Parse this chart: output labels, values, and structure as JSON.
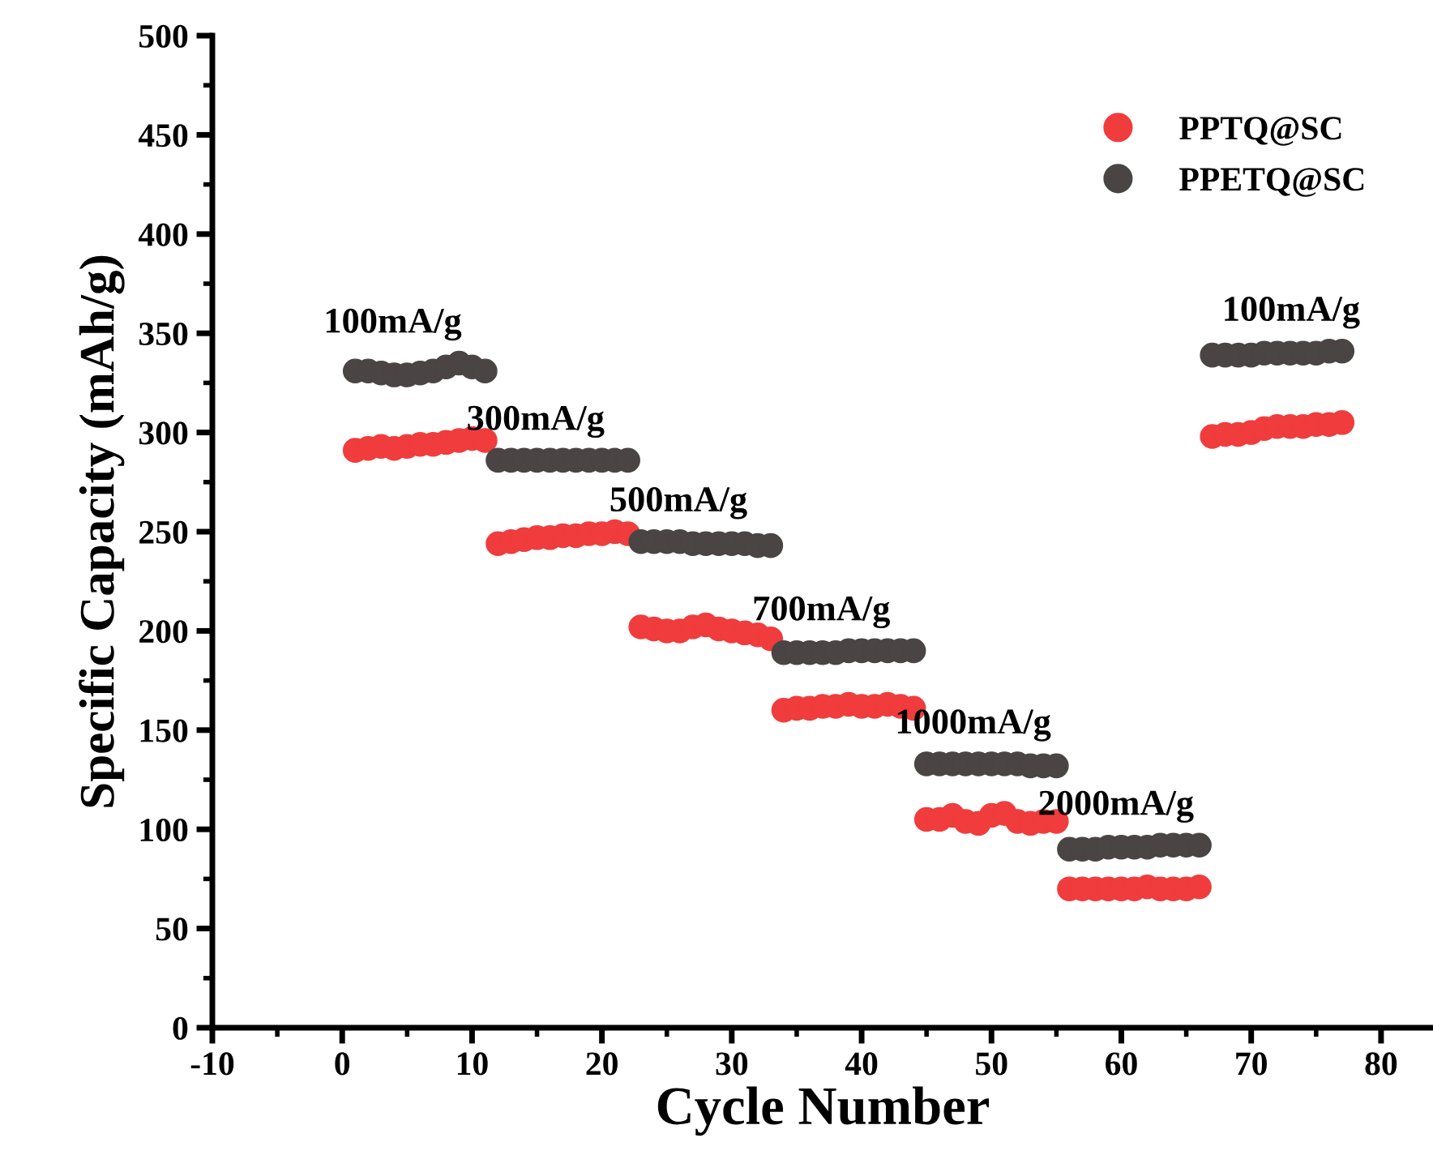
{
  "chart_data": {
    "type": "scatter",
    "xlabel": "Cycle Number",
    "ylabel": "Specific Capacity (mAh/g)",
    "x": [
      1,
      2,
      3,
      4,
      5,
      6,
      7,
      8,
      9,
      10,
      11,
      12,
      13,
      14,
      15,
      16,
      17,
      18,
      19,
      20,
      21,
      22,
      23,
      24,
      25,
      26,
      27,
      28,
      29,
      30,
      31,
      32,
      33,
      34,
      35,
      36,
      37,
      38,
      39,
      40,
      41,
      42,
      43,
      44,
      45,
      46,
      47,
      48,
      49,
      50,
      51,
      52,
      53,
      54,
      55,
      56,
      57,
      58,
      59,
      60,
      61,
      62,
      63,
      64,
      65,
      66,
      67,
      68,
      69,
      70,
      71,
      72,
      73,
      74,
      75,
      76,
      77
    ],
    "series": [
      {
        "name": "PPTQ@SC",
        "color": "#f03c3c",
        "values": [
          291,
          292,
          293,
          292,
          293,
          294,
          294,
          295,
          296,
          297,
          296,
          244,
          245,
          246,
          247,
          247,
          248,
          248,
          249,
          249,
          250,
          249,
          202,
          201,
          200,
          200,
          202,
          203,
          201,
          200,
          199,
          198,
          196,
          160,
          161,
          161,
          162,
          162,
          163,
          162,
          162,
          163,
          162,
          161,
          105,
          105,
          107,
          104,
          103,
          107,
          108,
          104,
          103,
          104,
          104,
          70,
          70,
          70,
          70,
          70,
          70,
          71,
          70,
          70,
          70,
          71,
          298,
          299,
          299,
          300,
          302,
          303,
          303,
          303,
          304,
          304,
          305
        ]
      },
      {
        "name": "PPETQ@SC",
        "color": "#4a4444",
        "values": [
          331,
          331,
          330,
          329,
          329,
          330,
          331,
          333,
          335,
          333,
          331,
          286,
          286,
          286,
          286,
          286,
          286,
          286,
          286,
          286,
          286,
          286,
          245,
          245,
          245,
          245,
          244,
          244,
          244,
          244,
          244,
          243,
          243,
          189,
          189,
          189,
          189,
          189,
          190,
          190,
          190,
          190,
          190,
          190,
          133,
          133,
          133,
          133,
          133,
          133,
          133,
          133,
          132,
          132,
          132,
          90,
          90,
          90,
          91,
          91,
          91,
          91,
          92,
          92,
          92,
          92,
          339,
          339,
          339,
          339,
          340,
          340,
          340,
          340,
          340,
          341,
          341
        ]
      }
    ],
    "marker": "circle",
    "legend": "top right",
    "grid": false,
    "xlim": [
      -10,
      84
    ],
    "xticks": [
      -10,
      {
        "value": -5,
        "label": null
      },
      0,
      {
        "value": 5,
        "label": null
      },
      10,
      {
        "value": 15,
        "label": null
      },
      20,
      {
        "value": 25,
        "label": null
      },
      30,
      {
        "value": 35,
        "label": null
      },
      40,
      {
        "value": 45,
        "label": null
      },
      50,
      {
        "value": 55,
        "label": null
      },
      60,
      {
        "value": 65,
        "label": null
      },
      70,
      {
        "value": 75,
        "label": null
      },
      80
    ],
    "ylim": [
      0,
      500
    ],
    "yticks": [
      0,
      {
        "value": 25,
        "label": null
      },
      50,
      {
        "value": 75,
        "label": null
      },
      100,
      {
        "value": 125,
        "label": null
      },
      150,
      {
        "value": 175,
        "label": null
      },
      200,
      {
        "value": 225,
        "label": null
      },
      250,
      {
        "value": 275,
        "label": null
      },
      300,
      {
        "value": 325,
        "label": null
      },
      350,
      {
        "value": 375,
        "label": null
      },
      400,
      {
        "value": 425,
        "label": null
      },
      450,
      {
        "value": 475,
        "label": null
      },
      500
    ],
    "annotations": [
      "100mA/g",
      "300mA/g",
      "500mA/g",
      "700mA/g",
      "1000mA/g",
      "2000mA/g",
      "100mA/g"
    ]
  }
}
